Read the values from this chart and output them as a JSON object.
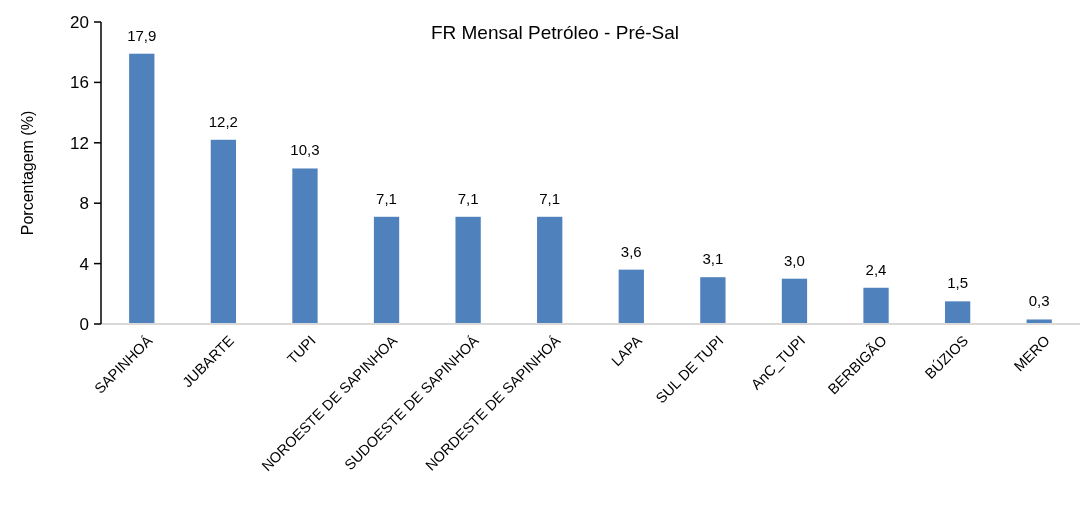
{
  "chart_data": {
    "type": "bar",
    "title": "FR Mensal Petróleo - Pré-Sal",
    "ylabel": "Porcentagem (%)",
    "categories": [
      "SAPINHOÁ",
      "JUBARTE",
      "TUPI",
      "NOROESTE DE SAPINHOA",
      "SUDOESTE DE SAPINHOÁ",
      "NORDESTE DE SAPINHOÁ",
      "LAPA",
      "SUL DE TUPI",
      "AnC_TUPI",
      "BERBIGÃO",
      "BÚZIOS",
      "MERO"
    ],
    "values": [
      17.9,
      12.2,
      10.3,
      7.1,
      7.1,
      7.1,
      3.6,
      3.1,
      3.0,
      2.4,
      1.5,
      0.3
    ],
    "value_labels": [
      "17,9",
      "12,2",
      "10,3",
      "7,1",
      "7,1",
      "7,1",
      "3,6",
      "3,1",
      "3,0",
      "2,4",
      "1,5",
      "0,3"
    ],
    "color": "#4f81bd",
    "ylim": [
      0,
      20
    ],
    "yticks": [
      0,
      4,
      8,
      12,
      16,
      20
    ],
    "grid": false
  }
}
